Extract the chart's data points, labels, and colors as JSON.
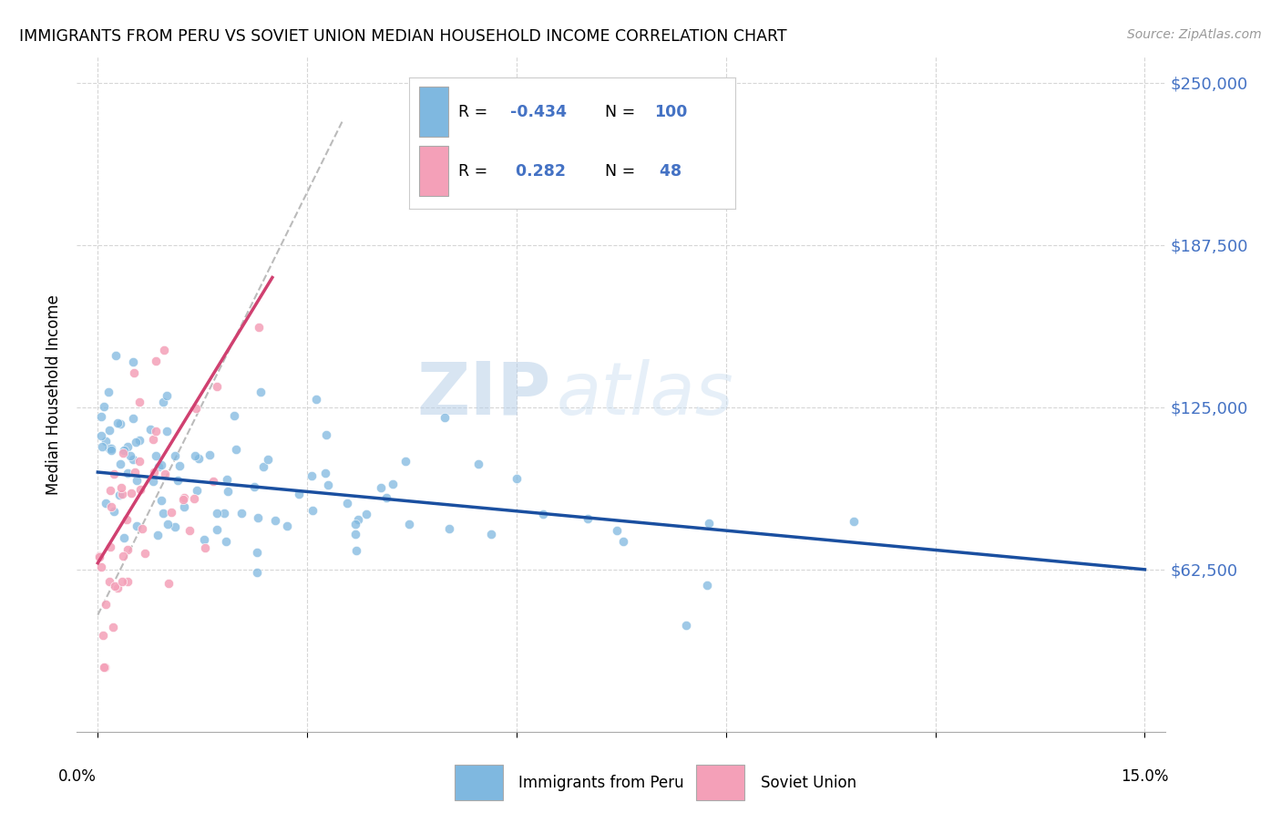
{
  "title": "IMMIGRANTS FROM PERU VS SOVIET UNION MEDIAN HOUSEHOLD INCOME CORRELATION CHART",
  "source": "Source: ZipAtlas.com",
  "ylabel": "Median Household Income",
  "y_ticks": [
    62500,
    125000,
    187500,
    250000
  ],
  "y_tick_labels": [
    "$62,500",
    "$125,000",
    "$187,500",
    "$250,000"
  ],
  "y_min": 0,
  "y_max": 260000,
  "x_min": 0.0,
  "x_max": 15.0,
  "blue_R": -0.434,
  "blue_N": 100,
  "pink_R": 0.282,
  "pink_N": 48,
  "blue_scatter_color": "#7fb8e0",
  "pink_scatter_color": "#f4a0b8",
  "blue_line_color": "#1a4fa0",
  "pink_line_color": "#d04070",
  "legend_label_blue": "Immigrants from Peru",
  "legend_label_pink": "Soviet Union",
  "watermark_zip": "ZIP",
  "watermark_atlas": "atlas",
  "background_color": "#ffffff",
  "grid_color": "#cccccc",
  "right_label_color": "#4472c4"
}
